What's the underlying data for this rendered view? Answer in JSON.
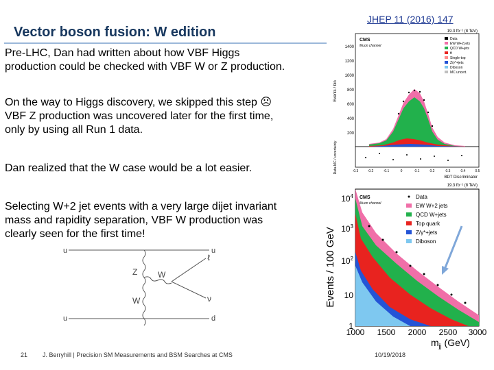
{
  "slide": {
    "title": "Vector boson fusion: W edition",
    "reference": "JHEP 11 (2016) 147",
    "para1": [
      "Pre-LHC, Dan had written about how VBF Higgs",
      "production could be checked with VBF W or Z production."
    ],
    "para2_line1": "On the way to Higgs discovery, we skipped this step",
    "sad_face": "☹",
    "para2_lines": [
      "VBF Z production was uncovered later for the first time,",
      "only by using all Run 1 data."
    ],
    "para3": "Dan realized that the W case would be a lot easier.",
    "para4": [
      "Selecting W+2 jet events with a very large dijet invariant",
      "mass and rapidity separation, VBF W production was",
      "clearly seen for the first time!"
    ]
  },
  "feynman": {
    "in_top": "u",
    "out_top": "u",
    "in_bottom": "u",
    "out_bottom": "d",
    "boson_z": "Z",
    "boson_w_upper": "W",
    "boson_w_lower": "W",
    "lepton": "ℓ",
    "neutrino": "ν"
  },
  "footer": {
    "page": "21",
    "text": "J. Berryhill | Precision SM Measurements and BSM Searches at CMS",
    "date": "10/19/2018"
  },
  "plot_top": {
    "lumi": "19.3 fb⁻¹ (8 TeV)",
    "cms": "CMS",
    "channel": "Muon channel",
    "ylabel": "Events / bin",
    "ratio_label": "Data-MC / uncertainty",
    "xlabel": "BDT Discriminator",
    "yticks": [
      "1400",
      "1200",
      "1000",
      "800",
      "600",
      "400",
      "200"
    ],
    "xticks": [
      "-0.3",
      "-0.2",
      "-0.1",
      "0",
      "0.1",
      "0.2",
      "0.3",
      "0.4",
      "0.5"
    ],
    "legend": [
      {
        "label": "Data",
        "color": "#000000"
      },
      {
        "label": "EW W+2 jets",
        "color": "#f06fa8"
      },
      {
        "label": "QCD W+jets",
        "color": "#22b14c"
      },
      {
        "label": "tt̄",
        "color": "#e8231f"
      },
      {
        "label": "Single-top",
        "color": "#ff8a8a"
      },
      {
        "label": "Z/γ*+jets",
        "color": "#2454d6"
      },
      {
        "label": "Diboson",
        "color": "#7ec8f0"
      },
      {
        "label": "MC uncert.",
        "color": "#c0c0c0"
      }
    ]
  },
  "plot_bottom": {
    "lumi": "19.3 fb⁻¹ (8 TeV)",
    "cms": "CMS",
    "channel": "Muon channel",
    "ylabel": "Events / 100 GeV",
    "xlabel": "m",
    "xlabel_sub": "jj",
    "xlabel_unit": " (GeV)",
    "yticks": [
      {
        "base": "10",
        "exp": "4"
      },
      {
        "base": "10",
        "exp": "3"
      },
      {
        "base": "10",
        "exp": "2"
      },
      {
        "base": "10",
        "exp": ""
      },
      {
        "base": "1",
        "exp": ""
      }
    ],
    "xticks": [
      "1000",
      "1500",
      "2000",
      "2500",
      "3000"
    ],
    "legend": [
      {
        "label": "Data",
        "color": "#000000"
      },
      {
        "label": "EW W+2 jets",
        "color": "#f06fa8"
      },
      {
        "label": "QCD W+jets",
        "color": "#22b14c"
      },
      {
        "label": "Top quark",
        "color": "#e8231f"
      },
      {
        "label": "Z/γ*+jets",
        "color": "#2454d6"
      },
      {
        "label": "Diboson",
        "color": "#7ec8f0"
      }
    ]
  }
}
